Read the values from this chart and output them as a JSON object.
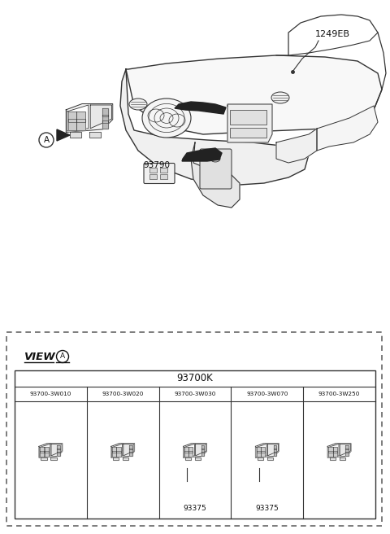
{
  "bg_color": "#ffffff",
  "title_ref": "1249EB",
  "part_93790": "93790",
  "view_label": "VIEW",
  "view_circle_label": "A",
  "group_label": "93700K",
  "sub_parts": [
    "93700-3W010",
    "93700-3W020",
    "93700-3W030",
    "93700-3W070",
    "93700-3W250"
  ],
  "sub_labels_93375": [
    false,
    false,
    true,
    true,
    false
  ],
  "label_93375": "93375",
  "line_color": "#333333",
  "text_color": "#111111",
  "arrow_fill": "#222222"
}
